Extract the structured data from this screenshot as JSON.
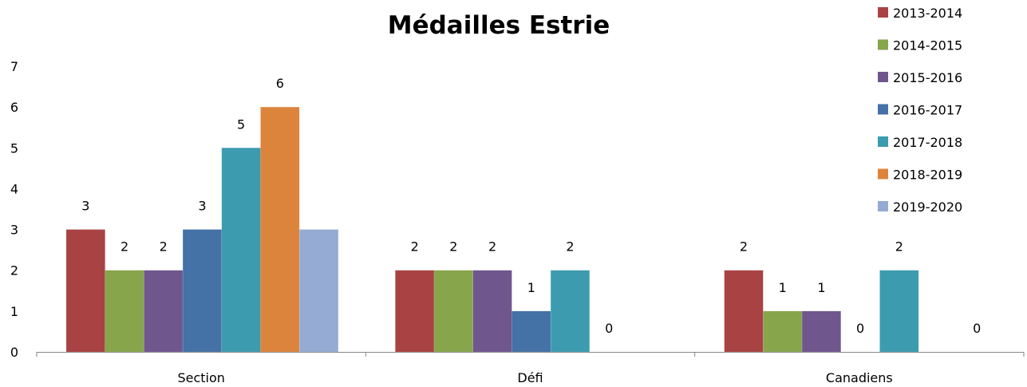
{
  "chart_data": {
    "type": "bar",
    "title": "Médailles Estrie",
    "xlabel": "",
    "ylabel": "",
    "ylim": [
      0,
      7
    ],
    "yticks": [
      0,
      1,
      2,
      3,
      4,
      5,
      6,
      7
    ],
    "grid": false,
    "legend_position": "right",
    "categories": [
      "Section",
      "Défi",
      "Canadiens"
    ],
    "series": [
      {
        "name": "2013-2014",
        "color": "#A94343",
        "values": [
          3,
          2,
          2
        ],
        "labels": [
          "3",
          "2",
          "2"
        ]
      },
      {
        "name": "2014-2015",
        "color": "#87A54B",
        "values": [
          2,
          2,
          1
        ],
        "labels": [
          "2",
          "2",
          "1"
        ]
      },
      {
        "name": "2015-2016",
        "color": "#6F578E",
        "values": [
          2,
          2,
          1
        ],
        "labels": [
          "2",
          "2",
          "1"
        ]
      },
      {
        "name": "2016-2017",
        "color": "#4471A6",
        "values": [
          3,
          1,
          0
        ],
        "labels": [
          "3",
          "1",
          "0"
        ]
      },
      {
        "name": "2017-2018",
        "color": "#3C9BAF",
        "values": [
          5,
          2,
          2
        ],
        "labels": [
          "5",
          "2",
          "2"
        ]
      },
      {
        "name": "2018-2019",
        "color": "#DD843C",
        "values": [
          6,
          0,
          null
        ],
        "labels": [
          "6",
          "0",
          ""
        ]
      },
      {
        "name": "2019-2020",
        "color": "#95ABD3",
        "values": [
          3,
          null,
          0
        ],
        "labels": [
          "",
          "",
          "0"
        ]
      }
    ]
  }
}
